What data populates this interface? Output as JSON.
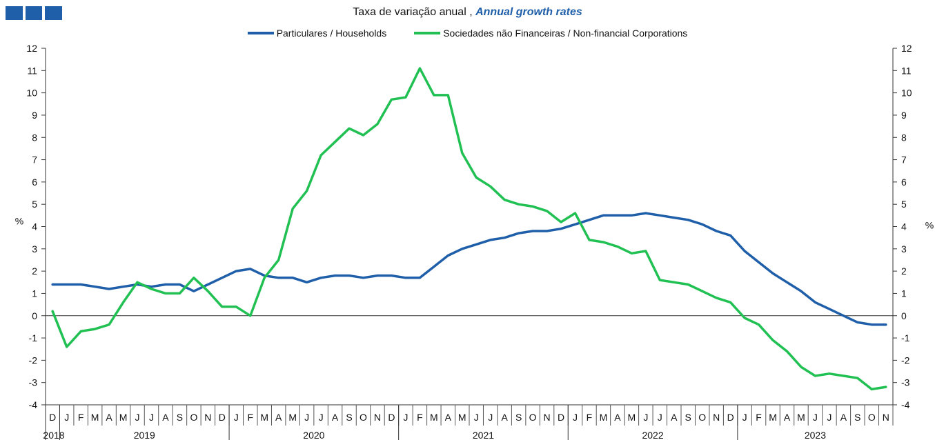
{
  "title": {
    "pt": "Taxa de variação anual , ",
    "en": "Annual growth rates"
  },
  "chart_data": {
    "type": "line",
    "ylabel_left": "%",
    "ylabel_right": "%",
    "ylim": [
      -4,
      12
    ],
    "y_ticks": [
      "12",
      "11",
      "10",
      "9",
      "8",
      "7",
      "6",
      "5",
      "4",
      "3",
      "2",
      "1",
      "0",
      "-1",
      "-2",
      "-3",
      "-4"
    ],
    "month_labels": [
      "D",
      "J",
      "F",
      "M",
      "A",
      "M",
      "J",
      "J",
      "A",
      "S",
      "O",
      "N",
      "D",
      "J",
      "F",
      "M",
      "A",
      "M",
      "J",
      "J",
      "A",
      "S",
      "O",
      "N",
      "D",
      "J",
      "F",
      "M",
      "A",
      "M",
      "J",
      "J",
      "A",
      "S",
      "O",
      "N",
      "D",
      "J",
      "F",
      "M",
      "A",
      "M",
      "J",
      "J",
      "A",
      "S",
      "O",
      "N",
      "D",
      "J",
      "F",
      "M",
      "A",
      "M",
      "J",
      "J",
      "A",
      "S",
      "O",
      "N"
    ],
    "years": [
      {
        "label": "2018",
        "start": 0,
        "end": 0
      },
      {
        "label": "2019",
        "start": 1,
        "end": 12
      },
      {
        "label": "2020",
        "start": 13,
        "end": 24
      },
      {
        "label": "2021",
        "start": 25,
        "end": 36
      },
      {
        "label": "2022",
        "start": 37,
        "end": 48
      },
      {
        "label": "2023",
        "start": 49,
        "end": 59
      }
    ],
    "series": [
      {
        "name": "Particulares / Households",
        "color": "#1f5ea8",
        "values": [
          1.4,
          1.4,
          1.4,
          1.3,
          1.2,
          1.3,
          1.4,
          1.3,
          1.4,
          1.4,
          1.1,
          1.4,
          1.7,
          2.0,
          2.1,
          1.8,
          1.7,
          1.7,
          1.5,
          1.7,
          1.8,
          1.8,
          1.7,
          1.8,
          1.8,
          1.7,
          1.7,
          2.2,
          2.7,
          3.0,
          3.2,
          3.4,
          3.5,
          3.7,
          3.8,
          3.8,
          3.9,
          4.1,
          4.3,
          4.5,
          4.5,
          4.5,
          4.6,
          4.5,
          4.4,
          4.3,
          4.1,
          3.8,
          3.6,
          2.9,
          2.4,
          1.9,
          1.5,
          1.1,
          0.6,
          0.3,
          0.0,
          -0.3,
          -0.4,
          -0.4
        ]
      },
      {
        "name": "Sociedades não Financeiras / Non-financial Corporations",
        "color": "#21c053",
        "values": [
          0.2,
          -1.4,
          -0.7,
          -0.6,
          -0.4,
          0.6,
          1.5,
          1.2,
          1.0,
          1.0,
          1.7,
          1.1,
          0.4,
          0.4,
          0.0,
          1.7,
          2.5,
          4.8,
          5.6,
          7.2,
          7.8,
          8.4,
          8.1,
          8.6,
          9.7,
          9.8,
          11.1,
          9.9,
          9.9,
          7.3,
          6.2,
          5.8,
          5.2,
          5.0,
          4.9,
          4.7,
          4.2,
          4.6,
          3.4,
          3.3,
          3.1,
          2.8,
          2.9,
          1.6,
          1.5,
          1.4,
          1.1,
          0.8,
          0.6,
          -0.1,
          -0.4,
          -1.1,
          -1.6,
          -2.3,
          -2.7,
          -2.6,
          -2.7,
          -2.8,
          -3.3,
          -3.2
        ]
      }
    ]
  }
}
